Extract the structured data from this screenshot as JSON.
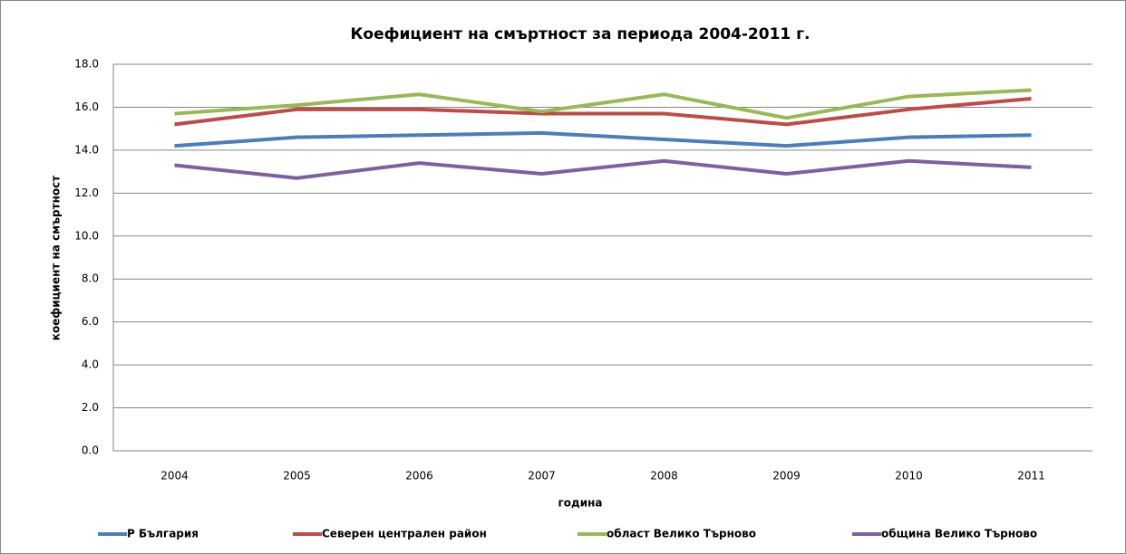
{
  "chart_data": {
    "type": "line",
    "title": "Коефициент на смъртност за периода 2004-2011 г.",
    "x_label": "година",
    "y_label": "коефициент на смъртност",
    "categories": [
      "2004",
      "2005",
      "2006",
      "2007",
      "2008",
      "2009",
      "2010",
      "2011"
    ],
    "series": [
      {
        "name": "Р България",
        "color": "#4a7ebb",
        "values": [
          14.2,
          14.6,
          14.7,
          14.8,
          14.5,
          14.2,
          14.6,
          14.7
        ]
      },
      {
        "name": "Северен централен район",
        "color": "#be4b48",
        "values": [
          15.2,
          15.9,
          15.9,
          15.7,
          15.7,
          15.2,
          15.9,
          16.4
        ]
      },
      {
        "name": "област Велико Търново",
        "color": "#98b954",
        "values": [
          15.7,
          16.1,
          16.6,
          15.8,
          16.6,
          15.5,
          16.5,
          16.8
        ]
      },
      {
        "name": "община Велико Търново",
        "color": "#7d60a0",
        "values": [
          13.3,
          12.7,
          13.4,
          12.9,
          13.5,
          12.9,
          13.5,
          13.2
        ]
      }
    ],
    "ylim": [
      0,
      18
    ],
    "yticks": [
      {
        "value": 0,
        "label": "0.0"
      },
      {
        "value": 2,
        "label": "2.0"
      },
      {
        "value": 4,
        "label": "4.0"
      },
      {
        "value": 6,
        "label": "6.0"
      },
      {
        "value": 8,
        "label": "8.0"
      },
      {
        "value": 10,
        "label": "10.0"
      },
      {
        "value": 12,
        "label": "12.0"
      },
      {
        "value": 14,
        "label": "14.0"
      },
      {
        "value": 16,
        "label": "16.0"
      },
      {
        "value": 18,
        "label": "18.0"
      }
    ],
    "grid": true,
    "legend": "bottom"
  }
}
